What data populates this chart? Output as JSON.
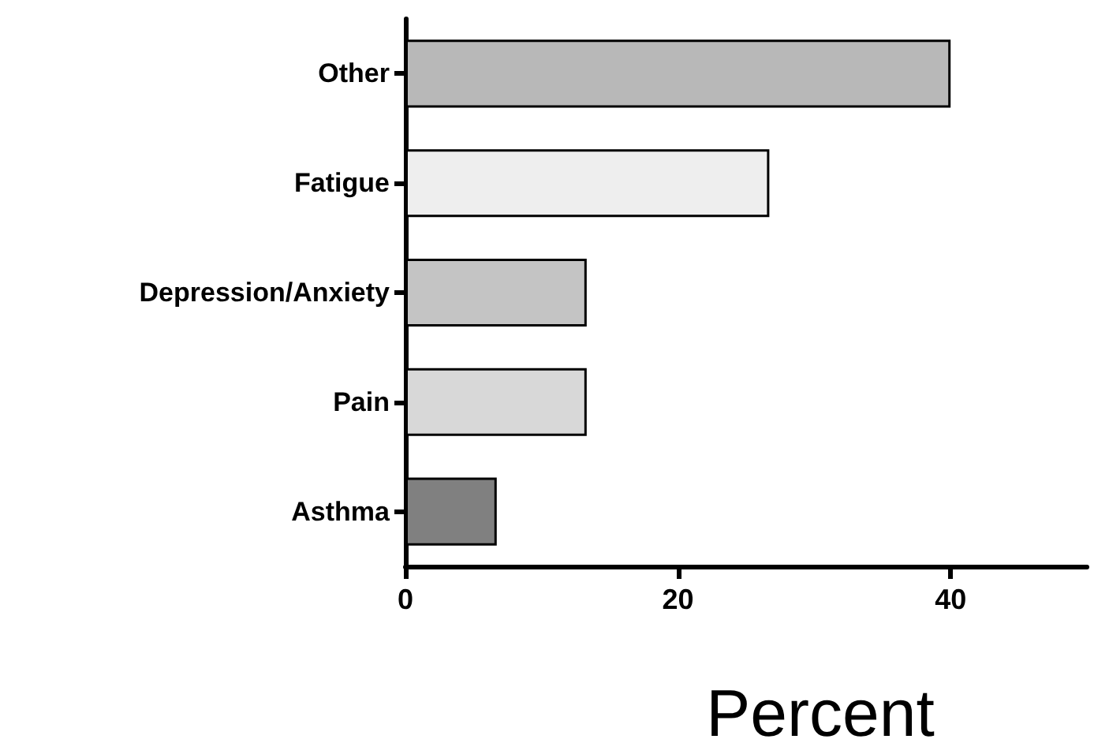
{
  "chart_data": {
    "type": "bar",
    "orientation": "horizontal",
    "xlabel": "Percent",
    "categories": [
      "Other",
      "Fatigue",
      "Depression/Anxiety",
      "Pain",
      "Asthma"
    ],
    "values": [
      40,
      26.7,
      13.3,
      13.3,
      6.7
    ],
    "colors": [
      "#b8b8b8",
      "#eeeeee",
      "#c4c4c4",
      "#d8d8d8",
      "#808080"
    ],
    "xlim": [
      0,
      50
    ],
    "xticks": [
      0,
      20,
      40
    ],
    "grid": false
  }
}
